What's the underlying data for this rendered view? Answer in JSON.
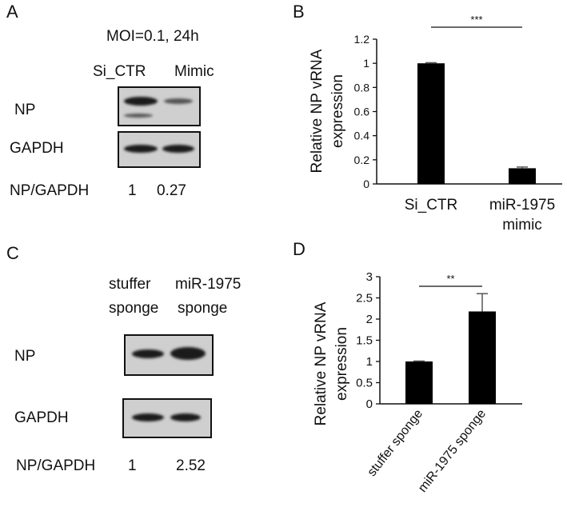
{
  "panels": {
    "A": {
      "letter": "A",
      "condition": "MOI=0.1,  24h",
      "lanes": [
        "Si_CTR",
        "Mimic"
      ],
      "rows": [
        "NP",
        "GAPDH"
      ],
      "ratio_label": "NP/GAPDH",
      "ratios": [
        "1",
        "0.27"
      ],
      "np_band_intensity": [
        1,
        0.27
      ]
    },
    "C": {
      "letter": "C",
      "lanes": [
        {
          "line1": "stuffer",
          "line2": "sponge"
        },
        {
          "line1": "miR-1975",
          "line2": "sponge"
        }
      ],
      "rows": [
        "NP",
        "GAPDH"
      ],
      "ratio_label": "NP/GAPDH",
      "ratios": [
        "1",
        "2.52"
      ],
      "np_band_intensity": [
        1,
        2.52
      ]
    },
    "B": {
      "letter": "B"
    },
    "D": {
      "letter": "D"
    }
  },
  "chart_data": [
    {
      "panel": "B",
      "type": "bar",
      "categories": [
        [
          "Si_CTR"
        ],
        [
          "miR-1975",
          "mimic"
        ]
      ],
      "values": [
        1.0,
        0.13
      ],
      "errors": [
        0.005,
        0.01
      ],
      "ylabel": [
        "Relative NP vRNA",
        "expression"
      ],
      "ylim": [
        0,
        1.2
      ],
      "yticks": [
        "0",
        "0.2",
        "0.4",
        "0.6",
        "0.8",
        "1",
        "1.2"
      ],
      "significance": "***",
      "bar_color": "#000000",
      "grid": false,
      "rotated_xlabels": false
    },
    {
      "panel": "D",
      "type": "bar",
      "categories": [
        [
          "stuffer sponge"
        ],
        [
          "miR-1975 sponge"
        ]
      ],
      "values": [
        1.0,
        2.18
      ],
      "errors": [
        0.01,
        0.42
      ],
      "ylabel": [
        "Relative NP vRNA",
        "expression"
      ],
      "ylim": [
        0,
        3
      ],
      "yticks": [
        "0",
        "0.5",
        "1",
        "1.5",
        "2",
        "2.5",
        "3"
      ],
      "significance": "**",
      "bar_color": "#000000",
      "grid": false,
      "rotated_xlabels": true
    }
  ]
}
